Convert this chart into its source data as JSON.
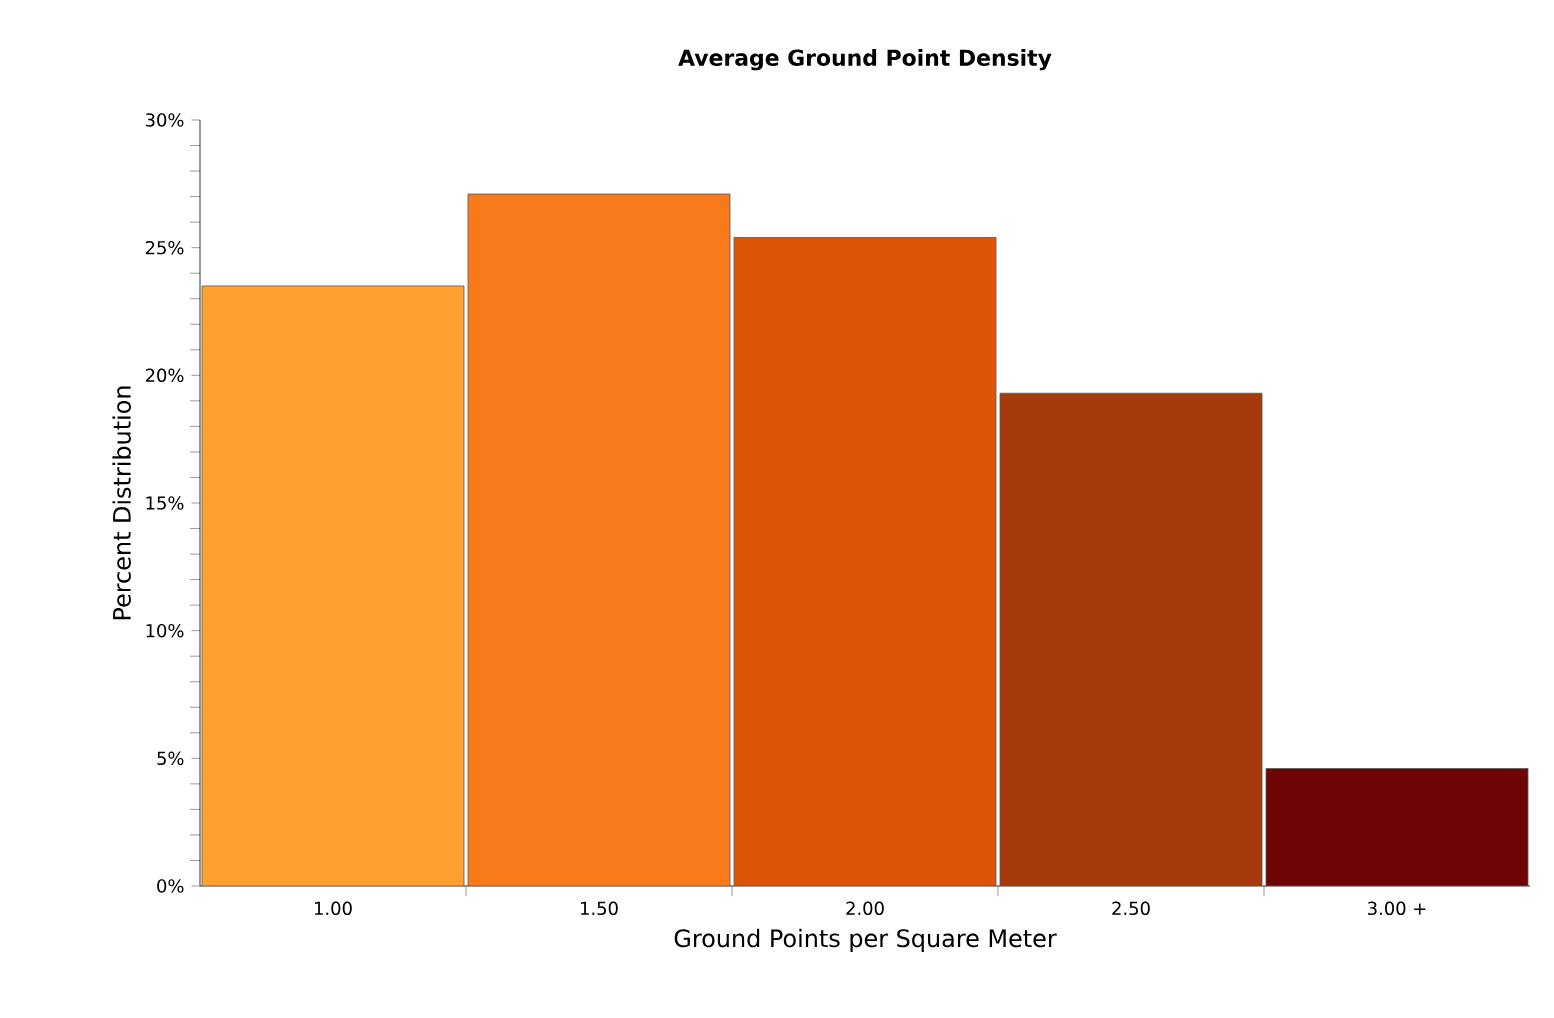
{
  "chart_data": {
    "type": "bar",
    "title": "Average Ground Point Density",
    "xlabel": "Ground Points per Square Meter",
    "ylabel": "Percent Distribution",
    "categories": [
      "1.00",
      "1.50",
      "2.00",
      "2.50",
      "3.00 +"
    ],
    "values": [
      23.5,
      27.1,
      25.4,
      19.3,
      4.6
    ],
    "colors": [
      "#ffa030",
      "#f87a1a",
      "#dc5508",
      "#a63a0a",
      "#6e0505"
    ],
    "ylim": [
      0,
      30
    ],
    "yticks": [
      {
        "value": 0,
        "label": "0%"
      },
      {
        "value": 5,
        "label": "5%"
      },
      {
        "value": 10,
        "label": "10%"
      },
      {
        "value": 15,
        "label": "15%"
      },
      {
        "value": 20,
        "label": "20%"
      },
      {
        "value": 25,
        "label": "25%"
      },
      {
        "value": 30,
        "label": "30%"
      }
    ]
  }
}
